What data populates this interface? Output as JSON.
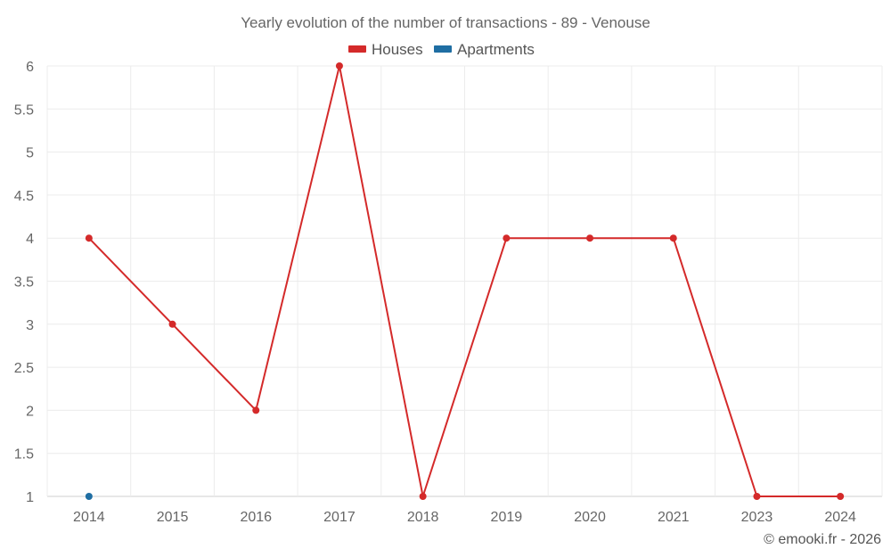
{
  "chart_data": {
    "type": "line",
    "title": "Yearly evolution of the number of transactions - 89 - Venouse",
    "categories": [
      "2014",
      "2015",
      "2016",
      "2017",
      "2018",
      "2019",
      "2020",
      "2021",
      "2023",
      "2024"
    ],
    "yticks": [
      "1",
      "1.5",
      "2",
      "2.5",
      "3",
      "3.5",
      "4",
      "4.5",
      "5",
      "5.5",
      "6"
    ],
    "ylim": [
      1,
      6
    ],
    "grid": true,
    "legend_position": "top-center",
    "series": [
      {
        "name": "Houses",
        "color": "#d42a2a",
        "values": [
          4,
          3,
          2,
          6,
          1,
          4,
          4,
          4,
          1,
          1
        ]
      },
      {
        "name": "Apartments",
        "color": "#1f6ea3",
        "values": [
          1,
          null,
          null,
          null,
          null,
          null,
          null,
          null,
          null,
          null
        ]
      }
    ]
  },
  "credit": "© emooki.fr - 2026"
}
